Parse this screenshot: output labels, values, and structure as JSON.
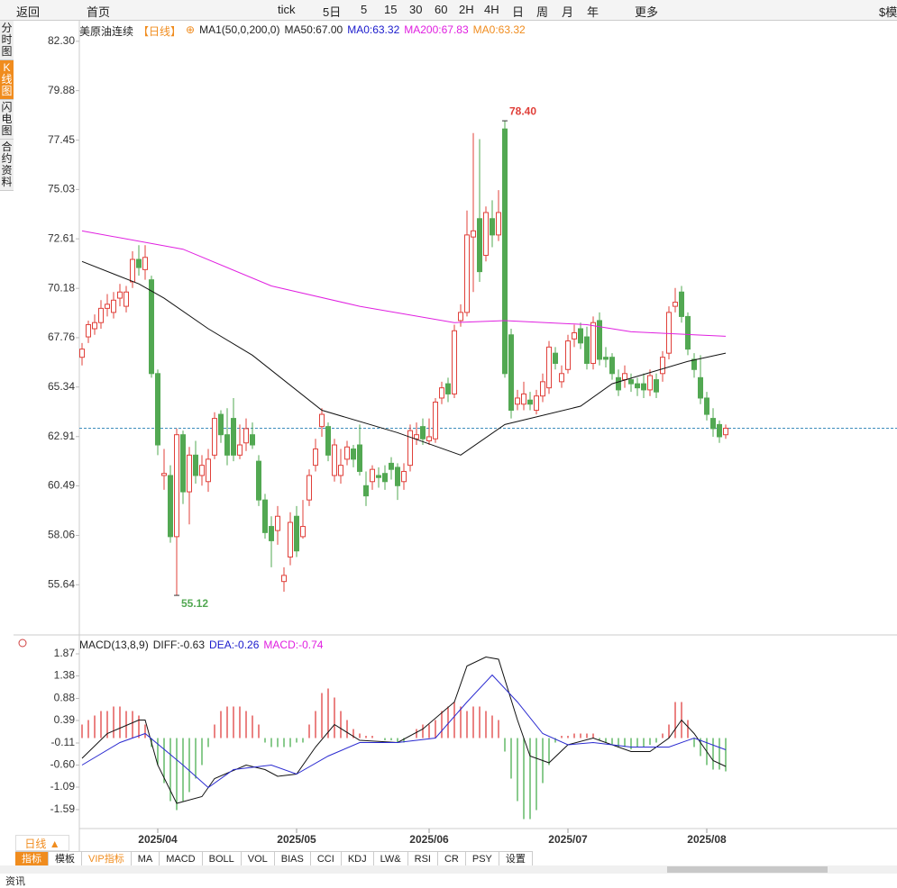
{
  "toolbar": [
    "返回",
    "首页",
    "tick",
    "5日",
    "5",
    "15",
    "30",
    "60",
    "2H",
    "4H",
    "日",
    "周",
    "月",
    "年",
    "更多",
    "$模"
  ],
  "sidebar": [
    "分时图",
    "K线图",
    "闪电图",
    "合约资料"
  ],
  "period_tab": "日线 ▲",
  "tabs": [
    "指标",
    "模板",
    "VIP指标",
    "MA",
    "MACD",
    "BOLL",
    "VOL",
    "BIAS",
    "CCI",
    "KDJ",
    "LW&",
    "RSI",
    "CR",
    "PSY",
    "设置"
  ],
  "footer": "资讯",
  "chart_data": [
    {
      "type": "candlestick",
      "header": [
        {
          "text": "美原油连续",
          "color": "#222"
        },
        {
          "text": "【日线】",
          "color": "#f08c1e"
        },
        {
          "text": "⊕",
          "color": "#f08c1e"
        },
        {
          "text": "MA1(50,0,200,0)",
          "color": "#222"
        },
        {
          "text": "MA50:67.00",
          "color": "#222"
        },
        {
          "text": "MA0:63.32",
          "color": "#1a1acc"
        },
        {
          "text": "MA200:67.83",
          "color": "#e020e0"
        },
        {
          "text": "MA0:63.32",
          "color": "#f08c1e"
        }
      ],
      "ylim": [
        53.4,
        83.0
      ],
      "yticks": [
        {
          "value": 82.3,
          "label": "82.30"
        },
        79.88,
        77.45,
        75.03,
        72.61,
        70.18,
        67.76,
        65.34,
        62.91,
        60.49,
        58.06,
        55.64
      ],
      "xlim": [
        -1,
        103
      ],
      "xticks": [
        {
          "value": 12,
          "label": "2025/04"
        },
        {
          "value": 34,
          "label": "2025/05"
        },
        {
          "value": 55,
          "label": "2025/06"
        },
        {
          "value": 77,
          "label": "2025/07"
        },
        {
          "value": 99,
          "label": "2025/08"
        }
      ],
      "up_color": "#e0403a",
      "down_color": "#52a852",
      "open": [
        66.8,
        67.8,
        68.2,
        68.5,
        69.2,
        69.0,
        69.7,
        69.3,
        70.5,
        71.6,
        71.1,
        70.6,
        66.0,
        61.0,
        61.0,
        58.0,
        63.0,
        60.2,
        62.0,
        61.0,
        60.7,
        62.0,
        64.0,
        63.0,
        63.8,
        62.0,
        62.6,
        63.0,
        61.7,
        59.8,
        58.5,
        58.3,
        55.8,
        57.0,
        59.0,
        58.0,
        59.8,
        61.5,
        63.4,
        63.4,
        61.0,
        61.0,
        61.8,
        62.3,
        62.5,
        60.5,
        60.7,
        61.0,
        61.1,
        61.6,
        61.4,
        60.7,
        61.5,
        62.8,
        63.4,
        62.7,
        62.8,
        64.8,
        65.5,
        65.0,
        68.6,
        69.0,
        72.7,
        73.6,
        71.8,
        73.6,
        72.8,
        78.0,
        67.9,
        64.5,
        64.5,
        64.7,
        64.2,
        64.9,
        65.3,
        67.0,
        65.6,
        66.2,
        67.7,
        68.2,
        67.8,
        66.5,
        68.6,
        66.8,
        66.8,
        65.8,
        65.7,
        65.7,
        65.5,
        65.5,
        65.2,
        65.7,
        66.0,
        67.0,
        69.3,
        70.0,
        68.8,
        66.7,
        65.8,
        64.8,
        63.8,
        63.5,
        63.0
      ],
      "high": [
        67.5,
        68.6,
        68.9,
        69.6,
        69.9,
        70.0,
        70.4,
        70.3,
        72.0,
        72.3,
        72.3,
        70.8,
        66.2,
        62.3,
        61.5,
        63.3,
        63.2,
        62.4,
        62.7,
        62.0,
        62.3,
        64.1,
        64.2,
        64.3,
        64.8,
        63.5,
        63.8,
        63.6,
        62.0,
        60.1,
        59.0,
        59.5,
        56.5,
        59.2,
        59.5,
        59.8,
        61.3,
        62.8,
        64.3,
        63.6,
        62.8,
        62.3,
        62.7,
        62.5,
        63.5,
        61.2,
        61.5,
        61.4,
        61.5,
        61.9,
        61.6,
        61.6,
        63.5,
        63.6,
        63.8,
        63.8,
        64.8,
        65.6,
        65.8,
        68.4,
        69.4,
        74.0,
        77.8,
        77.5,
        74.2,
        74.5,
        75.0,
        78.4,
        68.2,
        65.2,
        65.6,
        65.1,
        65.2,
        66.0,
        67.6,
        67.3,
        66.4,
        67.9,
        68.4,
        68.5,
        68.3,
        68.8,
        69.0,
        67.3,
        67.0,
        66.2,
        66.4,
        66.0,
        65.8,
        66.0,
        66.2,
        66.0,
        67.1,
        69.3,
        70.2,
        70.3,
        69.0,
        67.0,
        66.9,
        65.1,
        64.3,
        63.7,
        63.5
      ],
      "low": [
        66.4,
        67.5,
        67.9,
        68.2,
        68.8,
        68.7,
        69.3,
        69.0,
        70.2,
        70.8,
        70.6,
        65.8,
        62.0,
        60.3,
        57.7,
        55.12,
        59.6,
        58.6,
        60.6,
        60.5,
        60.2,
        61.8,
        62.6,
        61.5,
        61.7,
        61.8,
        62.2,
        62.3,
        59.5,
        57.9,
        56.5,
        57.6,
        55.3,
        56.6,
        57.0,
        57.9,
        59.5,
        61.2,
        62.9,
        61.7,
        60.7,
        60.6,
        61.5,
        61.4,
        61.0,
        59.5,
        60.3,
        60.4,
        60.3,
        60.8,
        59.8,
        60.3,
        61.2,
        62.5,
        62.5,
        62.5,
        62.6,
        64.5,
        64.6,
        64.8,
        68.3,
        68.8,
        70.0,
        70.5,
        71.5,
        72.2,
        72.5,
        65.8,
        63.8,
        64.2,
        64.2,
        64.2,
        64.0,
        64.6,
        65.0,
        66.2,
        65.3,
        66.0,
        67.3,
        67.2,
        66.2,
        66.2,
        66.4,
        66.3,
        65.7,
        64.9,
        65.3,
        65.1,
        64.9,
        64.8,
        64.9,
        64.8,
        65.6,
        66.7,
        69.0,
        68.5,
        66.9,
        65.8,
        64.5,
        63.7,
        62.9,
        62.6,
        62.8
      ],
      "close": [
        67.2,
        68.4,
        68.5,
        69.2,
        69.4,
        69.6,
        70.0,
        70.0,
        71.6,
        71.2,
        71.7,
        66.0,
        62.5,
        61.1,
        58.0,
        63.0,
        60.2,
        62.0,
        61.0,
        61.5,
        61.8,
        63.8,
        63.0,
        62.0,
        62.0,
        62.5,
        63.3,
        62.5,
        59.8,
        58.2,
        57.8,
        59.0,
        56.1,
        58.7,
        57.3,
        58.5,
        61.0,
        62.3,
        64.0,
        62.0,
        62.5,
        61.5,
        62.4,
        61.8,
        61.2,
        60.0,
        61.3,
        60.9,
        60.7,
        61.3,
        60.5,
        61.2,
        63.2,
        63.0,
        62.8,
        62.9,
        64.6,
        65.3,
        65.0,
        68.1,
        69.0,
        72.8,
        73.0,
        71.0,
        73.9,
        72.8,
        73.9,
        66.0,
        64.2,
        64.8,
        65.0,
        64.5,
        64.9,
        65.6,
        67.3,
        66.5,
        66.0,
        67.6,
        68.0,
        67.5,
        66.5,
        68.5,
        66.7,
        66.7,
        66.0,
        65.2,
        66.0,
        65.5,
        65.3,
        65.2,
        65.9,
        65.1,
        66.8,
        69.0,
        69.5,
        68.8,
        67.2,
        66.2,
        64.8,
        64.0,
        63.3,
        62.9,
        63.32
      ],
      "series": [
        {
          "name": "MA50",
          "color": "#111111",
          "x": [
            0,
            9,
            13,
            20,
            27,
            38,
            50,
            60,
            67,
            79,
            84,
            96,
            102
          ],
          "values": [
            71.5,
            70.4,
            69.7,
            68.2,
            66.9,
            64.2,
            63.1,
            62.0,
            63.5,
            64.4,
            65.5,
            66.6,
            67.0
          ]
        },
        {
          "name": "MA200",
          "color": "#e020e0",
          "x": [
            0,
            16,
            30,
            44,
            59,
            67,
            80,
            87,
            102
          ],
          "values": [
            73.0,
            72.1,
            70.3,
            69.3,
            68.5,
            68.6,
            68.4,
            68.05,
            67.83
          ]
        }
      ],
      "last_price": 63.32,
      "max_label": {
        "index": 67,
        "value": 78.4,
        "label": "78.40"
      },
      "min_label": {
        "index": 15,
        "value": 55.12,
        "label": "55.12"
      }
    },
    {
      "type": "macd",
      "header": [
        {
          "text": "MACD(13,8,9)",
          "color": "#222"
        },
        {
          "text": "DIFF:-0.63",
          "color": "#222"
        },
        {
          "text": "DEA:-0.26",
          "color": "#1a1acc"
        },
        {
          "text": "MACD:-0.74",
          "color": "#e020e0"
        }
      ],
      "ylim": [
        -1.81,
        2.15
      ],
      "yticks": [
        1.87,
        1.38,
        0.88,
        0.39,
        -0.11,
        {
          "value": -0.6,
          "label": "-0.60"
        },
        -1.09,
        -1.59
      ],
      "xlim": [
        -1,
        103
      ],
      "up_color": "#e04040",
      "down_color": "#4caf50",
      "histogram": [
        0.3,
        0.4,
        0.5,
        0.6,
        0.6,
        0.7,
        0.7,
        0.6,
        0.6,
        0.5,
        0.3,
        -0.2,
        -0.6,
        -1.0,
        -1.4,
        -1.6,
        -1.4,
        -1.2,
        -0.9,
        -0.6,
        -0.2,
        0.3,
        0.6,
        0.7,
        0.7,
        0.7,
        0.6,
        0.5,
        0.3,
        -0.1,
        -0.2,
        -0.2,
        -0.2,
        -0.2,
        -0.1,
        -0.1,
        0.3,
        0.6,
        1.0,
        1.1,
        0.9,
        0.6,
        0.4,
        0.2,
        0.1,
        0.05,
        0.05,
        0.0,
        -0.05,
        -0.05,
        -0.1,
        -0.1,
        0.0,
        0.2,
        0.3,
        0.3,
        0.4,
        0.6,
        0.7,
        0.8,
        0.7,
        0.6,
        0.7,
        0.7,
        0.6,
        0.5,
        0.4,
        -0.3,
        -0.9,
        -1.4,
        -1.8,
        -1.8,
        -1.6,
        -1.0,
        -0.6,
        -0.1,
        0.05,
        0.05,
        0.1,
        0.1,
        0.1,
        0.1,
        -0.05,
        -0.1,
        -0.15,
        -0.2,
        -0.2,
        -0.25,
        -0.2,
        -0.2,
        -0.15,
        -0.1,
        0.1,
        0.3,
        0.8,
        0.8,
        0.4,
        -0.2,
        -0.4,
        -0.6,
        -0.7,
        -0.7,
        -0.74
      ],
      "series": [
        {
          "name": "DIFF",
          "color": "#111111",
          "x": [
            0,
            4,
            9,
            10,
            12,
            15,
            19,
            21,
            26,
            29,
            31,
            34,
            37,
            40,
            44,
            50,
            54,
            59,
            61,
            64,
            66,
            69,
            71,
            74,
            77,
            81,
            87,
            90,
            93,
            95,
            97,
            100,
            102
          ],
          "values": [
            -0.45,
            0.1,
            0.4,
            0.4,
            -0.6,
            -1.45,
            -1.3,
            -0.9,
            -0.6,
            -0.7,
            -0.85,
            -0.8,
            -0.2,
            0.3,
            -0.05,
            -0.1,
            0.2,
            0.8,
            1.6,
            1.8,
            1.75,
            0.4,
            -0.4,
            -0.55,
            -0.15,
            0.0,
            -0.3,
            -0.3,
            0.0,
            0.4,
            0.1,
            -0.5,
            -0.63
          ]
        },
        {
          "name": "DEA",
          "color": "#2a2ad0",
          "x": [
            0,
            6,
            10,
            16,
            20,
            24,
            30,
            34,
            39,
            44,
            50,
            56,
            61,
            65,
            69,
            73,
            77,
            81,
            87,
            93,
            97,
            102
          ],
          "values": [
            -0.6,
            -0.1,
            0.1,
            -0.6,
            -1.1,
            -0.7,
            -0.6,
            -0.8,
            -0.4,
            -0.1,
            -0.1,
            0.0,
            0.8,
            1.4,
            0.8,
            0.1,
            -0.15,
            -0.1,
            -0.2,
            -0.2,
            0.0,
            -0.26
          ]
        }
      ]
    }
  ]
}
